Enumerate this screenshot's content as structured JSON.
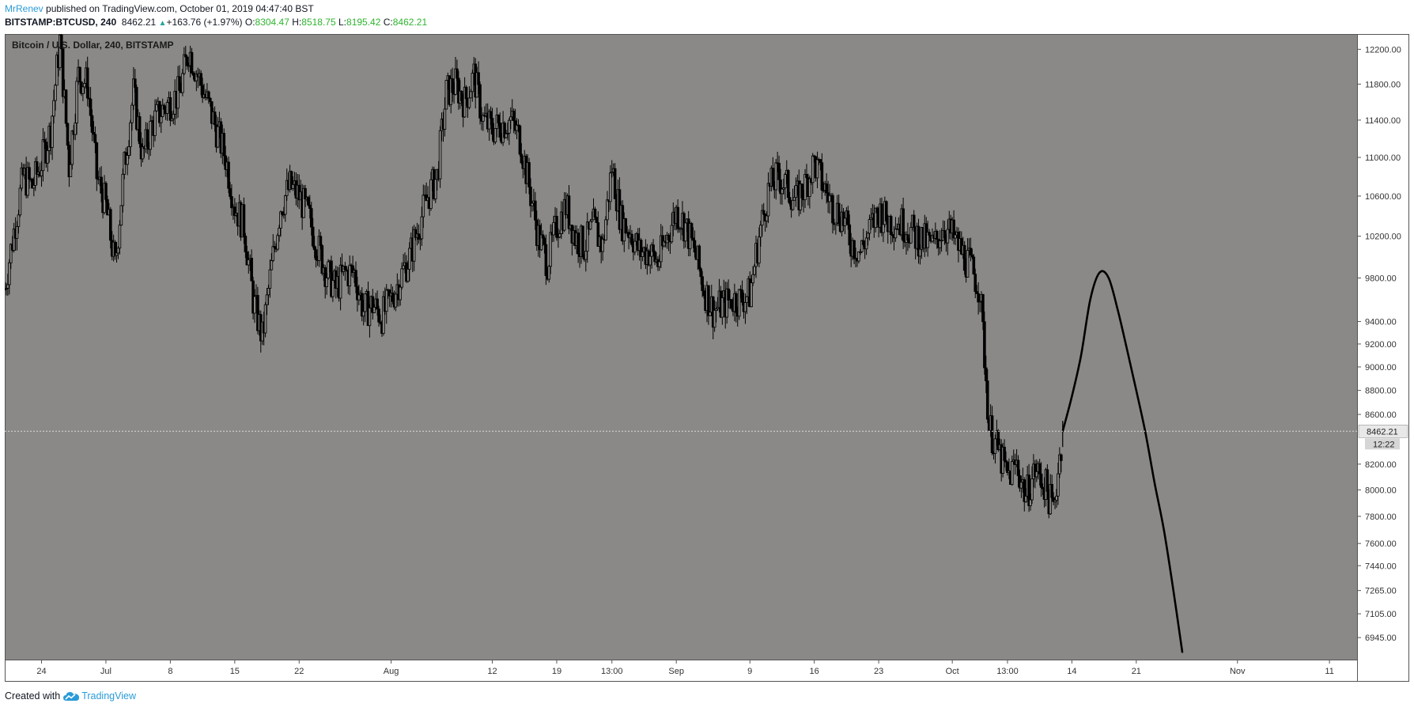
{
  "header": {
    "user": "MrRenev",
    "published_text": "published on TradingView.com, October 01, 2019 04:47:40 BST",
    "symbol": "BITSTAMP:BTCUSD, 240",
    "last": "8462.21",
    "change": "+163.76 (+1.97%)",
    "o_label": "O:",
    "o_value": "8304.47",
    "h_label": "H:",
    "h_value": "8518.75",
    "l_label": "L:",
    "l_value": "8195.42",
    "c_label": "C:",
    "c_value": "8462.21"
  },
  "footer": {
    "created_with": "Created with",
    "brand": "TradingView"
  },
  "chart_data": {
    "type": "line",
    "title": "Bitcoin / U.S. Dollar, 240, BITSTAMP",
    "background": "#8a8987",
    "line_color": "#000000",
    "y_scale": "log",
    "ylim": [
      6800,
      12380
    ],
    "y_ticks": [
      12200,
      11800,
      11400,
      11000,
      10600,
      10200,
      9800,
      9400,
      9200,
      9000,
      8800,
      8600,
      8200,
      8000,
      7800,
      7600,
      7440,
      7265,
      7105,
      6945
    ],
    "y_tick_labels": [
      "12200.00",
      "11800.00",
      "11400.00",
      "11000.00",
      "10600.00",
      "10200.00",
      "9800.00",
      "9400.00",
      "9200.00",
      "9000.00",
      "8800.00",
      "8600.00",
      "8200.00",
      "8000.00",
      "7800.00",
      "7600.00",
      "7440.00",
      "7265.00",
      "7105.00",
      "6945.00"
    ],
    "x_domain": [
      "2019-06-20",
      "2019-11-14"
    ],
    "x_ticks": [
      {
        "date": "2019-06-24",
        "label": "24"
      },
      {
        "date": "2019-07-01",
        "label": "Jul"
      },
      {
        "date": "2019-07-08",
        "label": "8"
      },
      {
        "date": "2019-07-15",
        "label": "15"
      },
      {
        "date": "2019-07-22",
        "label": "22"
      },
      {
        "date": "2019-08-01",
        "label": "Aug"
      },
      {
        "date": "2019-08-12",
        "label": "12"
      },
      {
        "date": "2019-08-19",
        "label": "19"
      },
      {
        "date": "2019-08-25",
        "label": "13:00"
      },
      {
        "date": "2019-09-01",
        "label": "Sep"
      },
      {
        "date": "2019-09-09",
        "label": "9"
      },
      {
        "date": "2019-09-16",
        "label": "16"
      },
      {
        "date": "2019-09-23",
        "label": "23"
      },
      {
        "date": "2019-10-01",
        "label": "Oct"
      },
      {
        "date": "2019-10-07",
        "label": "13:00"
      },
      {
        "date": "2019-10-14",
        "label": "14"
      },
      {
        "date": "2019-10-21",
        "label": "21"
      },
      {
        "date": "2019-11-01",
        "label": "Nov"
      },
      {
        "date": "2019-11-11",
        "label": "11"
      }
    ],
    "current_price": 8462.21,
    "current_price_label": "8462.21",
    "countdown_label": "12:22",
    "series": [
      {
        "style": "candles",
        "points": [
          [
            "2019-06-20",
            9700
          ],
          [
            "2019-06-21",
            10250
          ],
          [
            "2019-06-22",
            10800
          ],
          [
            "2019-06-23",
            10700
          ],
          [
            "2019-06-24",
            10950
          ],
          [
            "2019-06-25",
            11300
          ],
          [
            "2019-06-26",
            12300
          ],
          [
            "2019-06-27",
            10900
          ],
          [
            "2019-06-28",
            11900
          ],
          [
            "2019-06-29",
            11800
          ],
          [
            "2019-06-30",
            10800
          ],
          [
            "2019-07-01",
            10500
          ],
          [
            "2019-07-02",
            9900
          ],
          [
            "2019-07-03",
            10900
          ],
          [
            "2019-07-04",
            11700
          ],
          [
            "2019-07-05",
            11000
          ],
          [
            "2019-07-06",
            11350
          ],
          [
            "2019-07-07",
            11500
          ],
          [
            "2019-07-08",
            11600
          ],
          [
            "2019-07-09",
            11700
          ],
          [
            "2019-07-10",
            12200
          ],
          [
            "2019-07-11",
            11900
          ],
          [
            "2019-07-12",
            11600
          ],
          [
            "2019-07-13",
            11300
          ],
          [
            "2019-07-14",
            11000
          ],
          [
            "2019-07-15",
            10500
          ],
          [
            "2019-07-16",
            10300
          ],
          [
            "2019-07-17",
            9600
          ],
          [
            "2019-07-18",
            9250
          ],
          [
            "2019-07-19",
            9900
          ],
          [
            "2019-07-20",
            10500
          ],
          [
            "2019-07-21",
            10700
          ],
          [
            "2019-07-22",
            10600
          ],
          [
            "2019-07-23",
            10400
          ],
          [
            "2019-07-24",
            10100
          ],
          [
            "2019-07-25",
            9850
          ],
          [
            "2019-07-26",
            9700
          ],
          [
            "2019-07-27",
            9850
          ],
          [
            "2019-07-28",
            9850
          ],
          [
            "2019-07-29",
            9500
          ],
          [
            "2019-07-30",
            9550
          ],
          [
            "2019-07-31",
            9450
          ],
          [
            "2019-08-01",
            9600
          ],
          [
            "2019-08-02",
            9800
          ],
          [
            "2019-08-03",
            10000
          ],
          [
            "2019-08-04",
            10300
          ],
          [
            "2019-08-05",
            10600
          ],
          [
            "2019-08-06",
            10800
          ],
          [
            "2019-08-07",
            11700
          ],
          [
            "2019-08-08",
            11800
          ],
          [
            "2019-08-09",
            11600
          ],
          [
            "2019-08-10",
            11900
          ],
          [
            "2019-08-11",
            11400
          ],
          [
            "2019-08-12",
            11300
          ],
          [
            "2019-08-13",
            11350
          ],
          [
            "2019-08-14",
            11400
          ],
          [
            "2019-08-15",
            11200
          ],
          [
            "2019-08-16",
            10700
          ],
          [
            "2019-08-17",
            10200
          ],
          [
            "2019-08-18",
            9950
          ],
          [
            "2019-08-19",
            10300
          ],
          [
            "2019-08-20",
            10500
          ],
          [
            "2019-08-21",
            10200
          ],
          [
            "2019-08-22",
            10100
          ],
          [
            "2019-08-23",
            10300
          ],
          [
            "2019-08-24",
            10100
          ],
          [
            "2019-08-25",
            10900
          ],
          [
            "2019-08-26",
            10350
          ],
          [
            "2019-08-27",
            10250
          ],
          [
            "2019-08-28",
            10050
          ],
          [
            "2019-08-29",
            10050
          ],
          [
            "2019-08-30",
            9950
          ],
          [
            "2019-08-31",
            10200
          ],
          [
            "2019-09-01",
            10450
          ],
          [
            "2019-09-02",
            10300
          ],
          [
            "2019-09-03",
            10050
          ],
          [
            "2019-09-04",
            9700
          ],
          [
            "2019-09-05",
            9500
          ],
          [
            "2019-09-06",
            9550
          ],
          [
            "2019-09-07",
            9600
          ],
          [
            "2019-09-08",
            9600
          ],
          [
            "2019-09-09",
            9650
          ],
          [
            "2019-09-10",
            10200
          ],
          [
            "2019-09-11",
            10650
          ],
          [
            "2019-09-12",
            10800
          ],
          [
            "2019-09-13",
            10700
          ],
          [
            "2019-09-14",
            10550
          ],
          [
            "2019-09-15",
            10700
          ],
          [
            "2019-09-16",
            10950
          ],
          [
            "2019-09-17",
            10700
          ],
          [
            "2019-09-18",
            10500
          ],
          [
            "2019-09-19",
            10400
          ],
          [
            "2019-09-20",
            10150
          ],
          [
            "2019-09-21",
            10050
          ],
          [
            "2019-09-22",
            10250
          ],
          [
            "2019-09-23",
            10450
          ],
          [
            "2019-09-24",
            10350
          ],
          [
            "2019-09-25",
            10350
          ],
          [
            "2019-09-26",
            10300
          ],
          [
            "2019-09-27",
            10200
          ],
          [
            "2019-09-28",
            10150
          ],
          [
            "2019-09-29",
            10100
          ],
          [
            "2019-09-30",
            10300
          ],
          [
            "2019-10-01",
            10200
          ],
          [
            "2019-10-02",
            10050
          ],
          [
            "2019-10-03",
            9900
          ],
          [
            "2019-10-04",
            9700
          ],
          [
            "2019-10-05",
            8500
          ],
          [
            "2019-10-06",
            8300
          ],
          [
            "2019-10-07",
            8100
          ],
          [
            "2019-10-08",
            8200
          ],
          [
            "2019-10-09",
            7950
          ],
          [
            "2019-10-10",
            8150
          ],
          [
            "2019-10-11",
            8050
          ],
          [
            "2019-10-12",
            7850
          ],
          [
            "2019-10-13",
            8462.21
          ]
        ]
      },
      {
        "style": "drawing",
        "points": [
          [
            "2019-10-13",
            8462.21
          ],
          [
            "2019-10-14",
            8750
          ],
          [
            "2019-10-15",
            9100
          ],
          [
            "2019-10-16",
            9600
          ],
          [
            "2019-10-17",
            9850
          ],
          [
            "2019-10-18",
            9800
          ],
          [
            "2019-10-19",
            9500
          ],
          [
            "2019-10-20",
            9150
          ],
          [
            "2019-10-21",
            8800
          ],
          [
            "2019-10-22",
            8450
          ],
          [
            "2019-10-23",
            8050
          ],
          [
            "2019-10-24",
            7700
          ],
          [
            "2019-10-25",
            7280
          ],
          [
            "2019-10-26",
            6850
          ]
        ]
      }
    ]
  }
}
